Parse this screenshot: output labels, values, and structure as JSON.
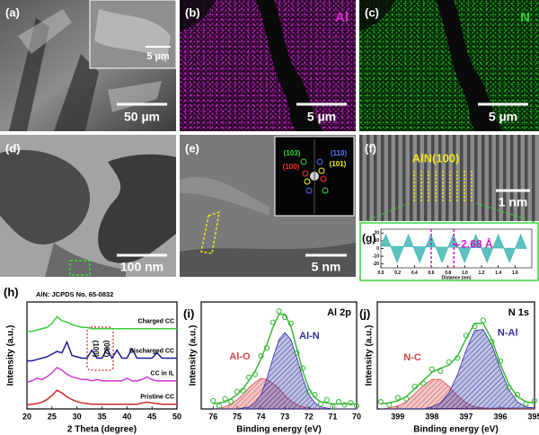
{
  "image_panels": [
    {
      "label": "(a)",
      "scale_bar": "50 µm",
      "inset_scale_bar": "5 µm"
    },
    {
      "label": "(b)",
      "element": "Al",
      "scale_bar": "5 µm"
    },
    {
      "label": "(c)",
      "element": "N",
      "scale_bar": "5 µm"
    },
    {
      "label": "(d)",
      "scale_bar": "100 nm"
    },
    {
      "label": "(e)",
      "scale_bar": "5 nm",
      "inset_labels": [
        "(103)",
        "(110)",
        "(100)",
        "(101)"
      ]
    },
    {
      "label": "(f)",
      "annotation": "AlN(100)",
      "scale_bar": "1 nm"
    }
  ],
  "chart_data": [
    {
      "type": "area",
      "label": "(g)",
      "xlabel": "Distance (nm)",
      "x": [
        0,
        0.06,
        0.127,
        0.194,
        0.261,
        0.328,
        0.395,
        0.462,
        0.529,
        0.596,
        0.663,
        0.73,
        0.797,
        0.864,
        0.931,
        0.998,
        1.065,
        1.132,
        1.199,
        1.266,
        1.333,
        1.4,
        1.467,
        1.534,
        1.601,
        1.668,
        1.735
      ],
      "series": [
        {
          "color": "#3fb7b4",
          "values": [
            3,
            18,
            0,
            -18,
            0,
            18,
            0,
            -18,
            0,
            18,
            0,
            -18,
            0,
            18,
            0,
            -18,
            0,
            18,
            0,
            -18,
            0,
            18,
            0,
            -18,
            0,
            18,
            0
          ]
        }
      ],
      "xlim": [
        0,
        1.8
      ],
      "xticks": [
        {
          "value": 0,
          "label": "0.0"
        },
        0.2,
        0.4,
        0.6,
        0.8,
        {
          "value": 1,
          "label": "1.0"
        },
        1.2,
        1.4,
        1.6
      ],
      "ylim": [
        -25,
        25
      ],
      "yticks": [
        -20,
        -10,
        0,
        10,
        20
      ],
      "annotation": "2.68 Å",
      "marker_lines": [
        0.6,
        0.87
      ],
      "marker_color": "#c81ec8"
    },
    {
      "type": "line",
      "label": "(h)",
      "xlabel": "2 Theta (degree)",
      "ylabel": "Intensity (a.u.)",
      "annotations": [
        "AlN: JCPDS No. 65-0832",
        "(100)",
        "(002)"
      ],
      "x": [
        20,
        21,
        22,
        23,
        24,
        25,
        26,
        27,
        28,
        29,
        30,
        31,
        32,
        33,
        34,
        35,
        36,
        37,
        38,
        39,
        40,
        41,
        42,
        43,
        44,
        45,
        46,
        47,
        48,
        49,
        50
      ],
      "series": [
        {
          "name": "Charged CC",
          "color": "#3ccf3c",
          "values": [
            5.8,
            5.8,
            5.9,
            6.0,
            6.1,
            6.4,
            6.9,
            6.6,
            6.5,
            6.3,
            6.2,
            6.1,
            6.1,
            6.0,
            6.0,
            6.0,
            6.0,
            6.0,
            6.0,
            6.0,
            6.0,
            6.0,
            6.0,
            6.0,
            6.0,
            6.0,
            6.0,
            6.0,
            6.0,
            6.0,
            6.0
          ]
        },
        {
          "name": "Discharged CC",
          "color": "#1e1e96",
          "values": [
            3.6,
            3.6,
            3.7,
            3.8,
            3.9,
            4.1,
            4.3,
            4.2,
            5.0,
            4.0,
            3.9,
            3.8,
            3.8,
            4.4,
            3.8,
            3.8,
            4.5,
            3.8,
            4.4,
            3.8,
            3.8,
            4.5,
            3.8,
            3.8,
            3.8,
            3.8,
            4.2,
            3.8,
            3.8,
            3.8,
            3.8
          ]
        },
        {
          "name": "CC in IL",
          "color": "#d23cd2",
          "values": [
            2.0,
            2.1,
            2.3,
            2.2,
            2.4,
            2.7,
            3.1,
            2.9,
            2.6,
            2.4,
            2.3,
            2.2,
            2.2,
            2.1,
            2.2,
            2.1,
            2.1,
            2.1,
            2.1,
            2.1,
            2.3,
            2.1,
            2.1,
            2.2,
            2.4,
            2.2,
            2.1,
            2.1,
            2.1,
            2.1,
            2.1
          ]
        },
        {
          "name": "Pristine CC",
          "color": "#d22828",
          "values": [
            0.3,
            0.35,
            0.4,
            0.5,
            0.7,
            1.0,
            1.4,
            1.2,
            0.9,
            0.7,
            0.55,
            0.45,
            0.4,
            0.35,
            0.35,
            0.35,
            0.35,
            0.35,
            0.35,
            0.35,
            0.35,
            0.35,
            0.35,
            0.45,
            0.5,
            0.45,
            0.4,
            0.35,
            0.35,
            0.35,
            0.35
          ]
        }
      ],
      "xlim": [
        20,
        50
      ],
      "xticks": [
        20,
        25,
        30,
        35,
        40,
        45,
        50
      ],
      "ylim": [
        0,
        8
      ]
    },
    {
      "type": "line",
      "label": "(i)",
      "title": "Al 2p",
      "xlabel": "Binding energy (eV)",
      "ylabel": "Intensity (a.u.)",
      "x": [
        76,
        75.75,
        75.5,
        75.25,
        75,
        74.75,
        74.5,
        74.25,
        74,
        73.75,
        73.5,
        73.25,
        73,
        72.75,
        72.5,
        72.25,
        72,
        71.75,
        71.5,
        71.25,
        71,
        70.75,
        70.5,
        70.25,
        70
      ],
      "series": [
        {
          "name": "Al-O",
          "color": "#d24646",
          "style": "hatch",
          "values": [
            0,
            0.01,
            0.02,
            0.05,
            0.09,
            0.14,
            0.21,
            0.26,
            0.3,
            0.29,
            0.25,
            0.2,
            0.13,
            0.08,
            0.04,
            0.02,
            0.01,
            0,
            0,
            0,
            0,
            0,
            0,
            0,
            0
          ]
        },
        {
          "name": "Al-N",
          "color": "#2d2da0",
          "style": "hatch",
          "values": [
            0,
            0,
            0,
            0,
            0,
            0.01,
            0.02,
            0.06,
            0.14,
            0.3,
            0.5,
            0.68,
            0.75,
            0.68,
            0.5,
            0.3,
            0.14,
            0.06,
            0.02,
            0.01,
            0,
            0,
            0,
            0,
            0
          ]
        },
        {
          "color": "#37b937",
          "style": "line",
          "values": [
            0.05,
            0.06,
            0.07,
            0.1,
            0.14,
            0.2,
            0.28,
            0.37,
            0.49,
            0.64,
            0.8,
            0.93,
            0.93,
            0.81,
            0.59,
            0.37,
            0.2,
            0.11,
            0.07,
            0.06,
            0.05,
            0.05,
            0.05,
            0.05,
            0.05
          ]
        },
        {
          "color": "#37b937",
          "style": "points",
          "values": [
            0.08,
            0.03,
            0.1,
            0.07,
            0.17,
            0.18,
            0.31,
            0.34,
            0.52,
            0.6,
            0.85,
            0.96,
            0.9,
            0.84,
            0.55,
            0.4,
            0.17,
            0.14,
            0.05,
            0.09,
            0.02,
            0.07,
            0.04,
            0.06,
            0.03
          ]
        }
      ],
      "xlim": [
        76.5,
        70
      ],
      "xticks": [
        76,
        75,
        74,
        73,
        72,
        71,
        70
      ],
      "ylim": [
        0,
        1.05
      ]
    },
    {
      "type": "line",
      "label": "(j)",
      "title": "N 1s",
      "xlabel": "Binding energy (eV)",
      "ylabel": "Intensity (a.u.)",
      "x": [
        399.5,
        399.25,
        399,
        398.75,
        398.5,
        398.25,
        398,
        397.75,
        397.5,
        397.25,
        397,
        396.75,
        396.5,
        396.25,
        396,
        395.75,
        395.5,
        395.25,
        395
      ],
      "series": [
        {
          "name": "N-C",
          "color": "#d24646",
          "style": "hatch",
          "values": [
            0,
            0.01,
            0.03,
            0.07,
            0.15,
            0.23,
            0.29,
            0.29,
            0.22,
            0.13,
            0.06,
            0.02,
            0.01,
            0,
            0,
            0,
            0,
            0,
            0
          ]
        },
        {
          "name": "N-Al",
          "color": "#2d2da0",
          "style": "hatch",
          "values": [
            0,
            0,
            0,
            0,
            0,
            0,
            0.02,
            0.06,
            0.16,
            0.34,
            0.58,
            0.77,
            0.78,
            0.63,
            0.39,
            0.19,
            0.07,
            0.02,
            0.01
          ]
        },
        {
          "color": "#37b937",
          "style": "line",
          "values": [
            0.05,
            0.06,
            0.08,
            0.12,
            0.2,
            0.28,
            0.36,
            0.4,
            0.43,
            0.52,
            0.69,
            0.84,
            0.84,
            0.68,
            0.44,
            0.24,
            0.12,
            0.07,
            0.06
          ]
        },
        {
          "color": "#37b937",
          "style": "points",
          "values": [
            0.07,
            0.04,
            0.11,
            0.1,
            0.22,
            0.25,
            0.39,
            0.37,
            0.46,
            0.5,
            0.72,
            0.81,
            0.87,
            0.66,
            0.47,
            0.21,
            0.14,
            0.05,
            0.08
          ]
        }
      ],
      "xlim": [
        399.6,
        395
      ],
      "xticks": [
        399,
        398,
        397,
        396,
        395
      ],
      "ylim": [
        0,
        1.05
      ]
    }
  ]
}
